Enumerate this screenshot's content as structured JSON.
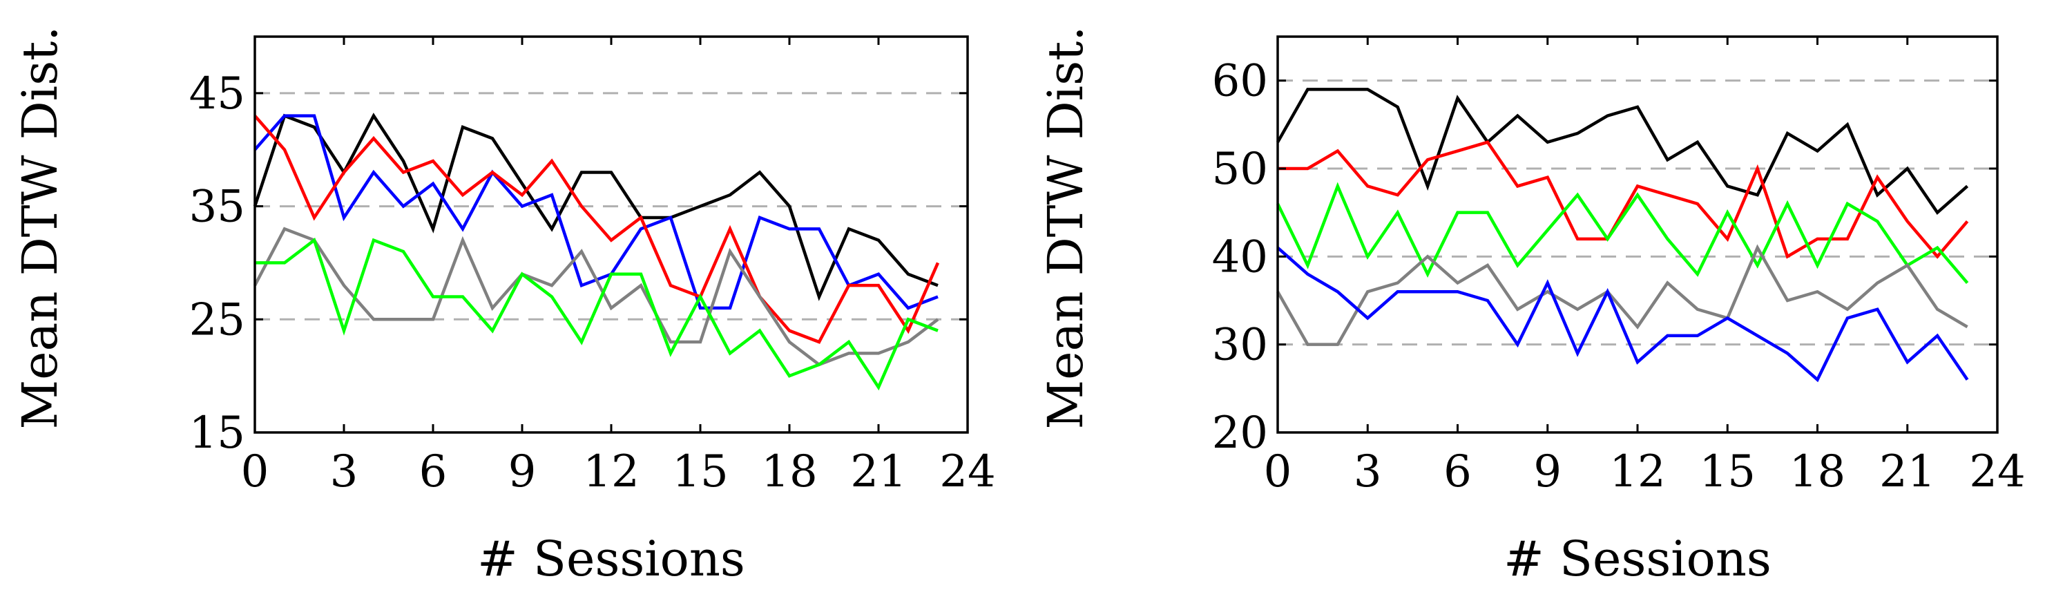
{
  "chart_data": [
    {
      "type": "line",
      "title": "",
      "xlabel": "# Sessions",
      "ylabel": "Mean DTW Dist.",
      "xlim": [
        0,
        24
      ],
      "ylim": [
        15,
        50
      ],
      "xticks": [
        "0",
        "3",
        "6",
        "9",
        "12",
        "15",
        "18",
        "21",
        "24"
      ],
      "yticks": [
        "15",
        "25",
        "35",
        "45"
      ],
      "grid_y": [
        25,
        35,
        45
      ],
      "x": [
        0,
        1,
        2,
        3,
        4,
        5,
        6,
        7,
        8,
        9,
        10,
        11,
        12,
        13,
        14,
        15,
        16,
        17,
        18,
        19,
        20,
        21,
        22,
        23
      ],
      "series": [
        {
          "name": "black",
          "color": "#000000",
          "values": [
            35,
            43,
            42,
            38,
            43,
            39,
            33,
            42,
            41,
            37,
            33,
            38,
            38,
            34,
            34,
            35,
            36,
            38,
            35,
            27,
            33,
            32,
            29,
            28
          ]
        },
        {
          "name": "blue",
          "color": "#0000ff",
          "values": [
            40,
            43,
            43,
            34,
            38,
            35,
            37,
            33,
            38,
            35,
            36,
            28,
            29,
            33,
            34,
            26,
            26,
            34,
            33,
            33,
            28,
            29,
            26,
            27
          ]
        },
        {
          "name": "red",
          "color": "#ff0000",
          "values": [
            43,
            40,
            34,
            38,
            41,
            38,
            39,
            36,
            38,
            36,
            39,
            35,
            32,
            34,
            28,
            27,
            33,
            27,
            24,
            23,
            28,
            28,
            24,
            30
          ]
        },
        {
          "name": "gray",
          "color": "#808080",
          "values": [
            28,
            33,
            32,
            28,
            25,
            25,
            25,
            32,
            26,
            29,
            28,
            31,
            26,
            28,
            23,
            23,
            31,
            27,
            23,
            21,
            22,
            22,
            23,
            25
          ]
        },
        {
          "name": "green",
          "color": "#00ff00",
          "values": [
            30,
            30,
            32,
            24,
            32,
            31,
            27,
            27,
            24,
            29,
            27,
            23,
            29,
            29,
            22,
            27,
            22,
            24,
            20,
            21,
            23,
            19,
            25,
            24
          ]
        }
      ]
    },
    {
      "type": "line",
      "title": "",
      "xlabel": "# Sessions",
      "ylabel": "Mean DTW Dist.",
      "xlim": [
        0,
        24
      ],
      "ylim": [
        20,
        65
      ],
      "xticks": [
        "0",
        "3",
        "6",
        "9",
        "12",
        "15",
        "18",
        "21",
        "24"
      ],
      "yticks": [
        "20",
        "30",
        "40",
        "50",
        "60"
      ],
      "grid_y": [
        30,
        40,
        50,
        60
      ],
      "x": [
        0,
        1,
        2,
        3,
        4,
        5,
        6,
        7,
        8,
        9,
        10,
        11,
        12,
        13,
        14,
        15,
        16,
        17,
        18,
        19,
        20,
        21,
        22,
        23
      ],
      "series": [
        {
          "name": "black",
          "color": "#000000",
          "values": [
            53,
            59,
            59,
            59,
            57,
            48,
            58,
            53,
            56,
            53,
            54,
            56,
            57,
            51,
            53,
            48,
            47,
            54,
            52,
            55,
            47,
            50,
            45,
            48
          ]
        },
        {
          "name": "red",
          "color": "#ff0000",
          "values": [
            50,
            50,
            52,
            48,
            47,
            51,
            52,
            53,
            48,
            49,
            42,
            42,
            48,
            47,
            46,
            42,
            50,
            40,
            42,
            42,
            49,
            44,
            40,
            44
          ]
        },
        {
          "name": "green",
          "color": "#00ff00",
          "values": [
            46,
            39,
            48,
            40,
            45,
            38,
            45,
            45,
            39,
            43,
            47,
            42,
            47,
            42,
            38,
            45,
            39,
            46,
            39,
            46,
            44,
            39,
            41,
            37
          ]
        },
        {
          "name": "gray",
          "color": "#808080",
          "values": [
            36,
            30,
            30,
            36,
            37,
            40,
            37,
            39,
            34,
            36,
            34,
            36,
            32,
            37,
            34,
            33,
            41,
            35,
            36,
            34,
            37,
            39,
            34,
            32
          ]
        },
        {
          "name": "blue",
          "color": "#0000ff",
          "values": [
            41,
            38,
            36,
            33,
            36,
            36,
            36,
            35,
            30,
            37,
            29,
            36,
            28,
            31,
            31,
            33,
            31,
            29,
            26,
            33,
            34,
            28,
            31,
            26
          ]
        }
      ]
    }
  ]
}
